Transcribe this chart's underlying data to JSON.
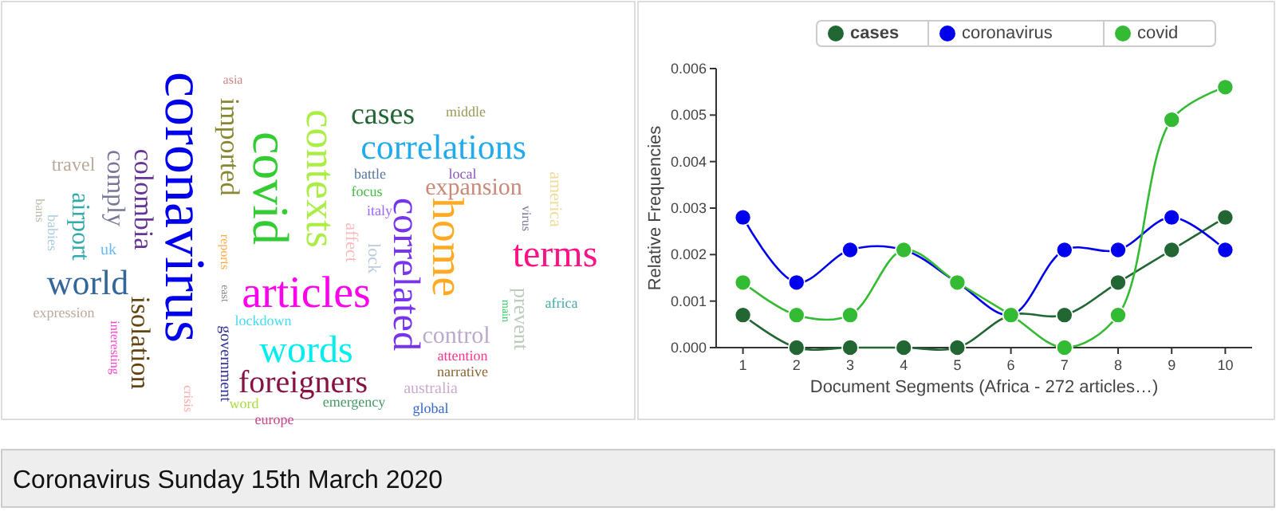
{
  "chart_data": [
    {
      "type": "other",
      "title": "Coronavirus Sunday 15th March 2020",
      "annotations": [
        "coronavirus",
        "covid",
        "contexts",
        "imported",
        "colombia",
        "comply",
        "airport",
        "travel",
        "bans",
        "babies",
        "uk",
        "world",
        "expression",
        "isolation",
        "interesting",
        "government",
        "crisis",
        "asia",
        "reports",
        "east",
        "articles",
        "words",
        "lockdown",
        "foreigners",
        "word",
        "europe",
        "emergency",
        "global",
        "australia",
        "narrative",
        "attention",
        "control",
        "correlated",
        "home",
        "cases",
        "correlations",
        "middle",
        "battle",
        "local",
        "expansion",
        "focus",
        "italy",
        "affect",
        "lock",
        "virus",
        "america",
        "terms",
        "prevent",
        "main",
        "africa"
      ],
      "colors": [
        "#0000ee",
        "#33cc33",
        "#aaee44",
        "#888833",
        "#663399",
        "#777799",
        "#33aaaa",
        "#bbaa99",
        "#bbbbaa",
        "#aaccdd",
        "#66bbff",
        "#336699",
        "#bbaa99",
        "#664411",
        "#ff44cc",
        "#333399",
        "#ffaaaa",
        "#cc8888",
        "#ffaa44",
        "#888888",
        "#ff00ee",
        "#00eeee",
        "#44ddee",
        "#881144",
        "#aadd44",
        "#cc4488",
        "#449966",
        "#3366cc",
        "#ccaacc",
        "#886633",
        "#ff3388",
        "#bbaacc",
        "#7733ee",
        "#ffaa22",
        "#226633",
        "#22aaee",
        "#999955",
        "#557799",
        "#8855bb",
        "#cc8877",
        "#44bb44",
        "#9966ff",
        "#ffbbbb",
        "#bbccdd",
        "#777799",
        "#eedd99",
        "#ff1188",
        "#bbccbb",
        "#33cc66",
        "#44aaaa"
      ]
    },
    {
      "type": "line",
      "xlabel": "Document Segments (Africa - 272 articles…)",
      "ylabel": "Relative Frequencies",
      "x": [
        1,
        2,
        3,
        4,
        5,
        6,
        7,
        8,
        9,
        10
      ],
      "xlim": [
        0.5,
        10.5
      ],
      "xticks": [
        1,
        2,
        3,
        4,
        5,
        6,
        7,
        8,
        9,
        10
      ],
      "ylim": [
        0,
        0.006
      ],
      "yticks": [
        {
          "value": 0,
          "label": "0.000"
        },
        {
          "value": 0.001,
          "label": "0.001"
        },
        {
          "value": 0.002,
          "label": "0.002"
        },
        {
          "value": 0.003,
          "label": "0.003"
        },
        {
          "value": 0.004,
          "label": "0.004"
        },
        {
          "value": 0.005,
          "label": "0.005"
        },
        {
          "value": 0.006,
          "label": "0.006"
        }
      ],
      "marker": "circle",
      "grid": false,
      "legend": "top",
      "series": [
        {
          "name": "cases",
          "color": "#226633",
          "values": [
            0.0007,
            0,
            0,
            0,
            0,
            0.0007,
            0.0007,
            0.0014,
            0.0021,
            0.0028
          ]
        },
        {
          "name": "coronavirus",
          "color": "#0000ee",
          "values": [
            0.0028,
            0.0014,
            0.0021,
            0.0021,
            0.0014,
            0.0007,
            0.0021,
            0.0021,
            0.0028,
            0.0021
          ]
        },
        {
          "name": "covid",
          "color": "#33bb33",
          "values": [
            0.0014,
            0.0007,
            0.0007,
            0.0021,
            0.0014,
            0.0007,
            0,
            0.0007,
            0.0049,
            0.0056
          ]
        }
      ]
    }
  ]
}
